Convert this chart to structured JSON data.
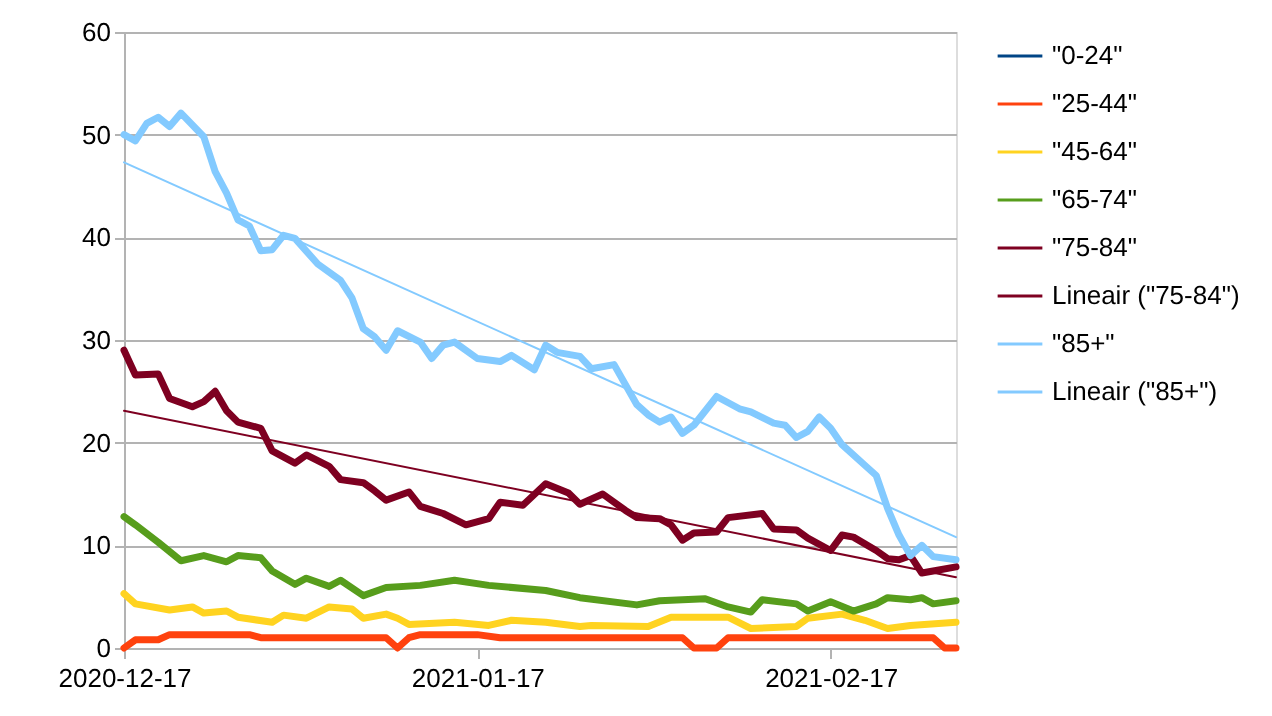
{
  "chart_data": {
    "type": "line",
    "xlim": [
      "2020-12-17",
      "2021-02-28"
    ],
    "xticks": [
      "2020-12-17",
      "2021-01-17",
      "2021-02-17"
    ],
    "ylim": [
      0,
      60
    ],
    "yticks": [
      0,
      10,
      20,
      30,
      40,
      50,
      60
    ],
    "grid": "y",
    "legend": "right",
    "series": [
      {
        "name": "\"0-24\"",
        "color": "#004586"
      },
      {
        "name": "\"25-44\"",
        "color": "#ff420e",
        "x": [
          "2020-12-17",
          "2020-12-18",
          "2020-12-20",
          "2020-12-21",
          "2020-12-26",
          "2020-12-28",
          "2020-12-29",
          "2021-01-09",
          "2021-01-10",
          "2021-01-11",
          "2021-01-12",
          "2021-01-17",
          "2021-01-19",
          "2021-02-04",
          "2021-02-05",
          "2021-02-07",
          "2021-02-08",
          "2021-02-26",
          "2021-02-27",
          "2021-02-28"
        ],
        "values": [
          0,
          0.8,
          0.8,
          1.3,
          1.3,
          1.3,
          1.0,
          1.0,
          0,
          1.0,
          1.3,
          1.3,
          1.0,
          1.0,
          0,
          0,
          1.0,
          1.0,
          0,
          0
        ]
      },
      {
        "name": "\"45-64\"",
        "color": "#ffd320",
        "x": [
          "2020-12-17",
          "2020-12-18",
          "2020-12-21",
          "2020-12-23",
          "2020-12-24",
          "2020-12-26",
          "2020-12-27",
          "2020-12-30",
          "2020-12-31",
          "2021-01-02",
          "2021-01-04",
          "2021-01-06",
          "2021-01-07",
          "2021-01-09",
          "2021-01-10",
          "2021-01-11",
          "2021-01-15",
          "2021-01-18",
          "2021-01-20",
          "2021-01-23",
          "2021-01-26",
          "2021-01-27",
          "2021-02-01",
          "2021-02-03",
          "2021-02-08",
          "2021-02-10",
          "2021-02-14",
          "2021-02-15",
          "2021-02-18",
          "2021-02-20",
          "2021-02-22",
          "2021-02-24",
          "2021-02-28"
        ],
        "values": [
          5.3,
          4.3,
          3.7,
          4.0,
          3.4,
          3.6,
          3.0,
          2.5,
          3.2,
          2.9,
          4.0,
          3.8,
          2.9,
          3.3,
          2.9,
          2.3,
          2.5,
          2.2,
          2.7,
          2.5,
          2.1,
          2.2,
          2.1,
          3.0,
          3.0,
          1.9,
          2.1,
          2.9,
          3.3,
          2.7,
          1.9,
          2.2,
          2.5
        ]
      },
      {
        "name": "\"65-74\"",
        "color": "#579d1c",
        "x": [
          "2020-12-17",
          "2020-12-18",
          "2020-12-20",
          "2020-12-22",
          "2020-12-24",
          "2020-12-26",
          "2020-12-27",
          "2020-12-29",
          "2020-12-30",
          "2021-01-01",
          "2021-01-02",
          "2021-01-04",
          "2021-01-05",
          "2021-01-07",
          "2021-01-09",
          "2021-01-12",
          "2021-01-15",
          "2021-01-18",
          "2021-01-23",
          "2021-01-26",
          "2021-01-31",
          "2021-02-02",
          "2021-02-06",
          "2021-02-08",
          "2021-02-10",
          "2021-02-11",
          "2021-02-14",
          "2021-02-15",
          "2021-02-17",
          "2021-02-19",
          "2021-02-21",
          "2021-02-22",
          "2021-02-24",
          "2021-02-25",
          "2021-02-26",
          "2021-02-28"
        ],
        "values": [
          12.8,
          12.0,
          10.3,
          8.5,
          9.0,
          8.4,
          9.0,
          8.8,
          7.5,
          6.2,
          6.8,
          6.0,
          6.6,
          5.1,
          5.9,
          6.1,
          6.6,
          6.1,
          5.6,
          4.9,
          4.2,
          4.6,
          4.8,
          4.0,
          3.5,
          4.7,
          4.3,
          3.6,
          4.5,
          3.6,
          4.3,
          4.9,
          4.7,
          4.9,
          4.3,
          4.6
        ]
      },
      {
        "name": "\"75-84\"",
        "color": "#7e0021",
        "x": [
          "2020-12-17",
          "2020-12-18",
          "2020-12-20",
          "2020-12-21",
          "2020-12-23",
          "2020-12-24",
          "2020-12-25",
          "2020-12-26",
          "2020-12-27",
          "2020-12-29",
          "2020-12-30",
          "2021-01-01",
          "2021-01-02",
          "2021-01-04",
          "2021-01-05",
          "2021-01-07",
          "2021-01-08",
          "2021-01-09",
          "2021-01-11",
          "2021-01-12",
          "2021-01-14",
          "2021-01-16",
          "2021-01-18",
          "2021-01-19",
          "2021-01-21",
          "2021-01-23",
          "2021-01-25",
          "2021-01-26",
          "2021-01-28",
          "2021-01-30",
          "2021-01-31",
          "2021-02-02",
          "2021-02-03",
          "2021-02-04",
          "2021-02-05",
          "2021-02-07",
          "2021-02-08",
          "2021-02-11",
          "2021-02-12",
          "2021-02-14",
          "2021-02-15",
          "2021-02-17",
          "2021-02-18",
          "2021-02-19",
          "2021-02-21",
          "2021-02-22",
          "2021-02-23",
          "2021-02-24",
          "2021-02-25",
          "2021-02-26",
          "2021-02-28"
        ],
        "values": [
          29.0,
          26.6,
          26.7,
          24.3,
          23.5,
          24.0,
          25.0,
          23.1,
          22.0,
          21.4,
          19.2,
          18.0,
          18.8,
          17.7,
          16.4,
          16.1,
          15.3,
          14.4,
          15.2,
          13.8,
          13.1,
          12.0,
          12.6,
          14.2,
          13.9,
          16.0,
          15.1,
          14.0,
          15.0,
          13.4,
          12.7,
          12.6,
          12.0,
          10.5,
          11.2,
          11.3,
          12.7,
          13.1,
          11.6,
          11.5,
          10.7,
          9.5,
          11.0,
          10.8,
          9.5,
          8.7,
          8.6,
          9.0,
          7.3,
          7.5,
          7.9
        ]
      },
      {
        "name": "Lineair (\"75-84\")",
        "color": "#7e0021",
        "type": "line",
        "x": [
          "2020-12-17",
          "2021-02-28"
        ],
        "values": [
          23.1,
          6.9
        ]
      },
      {
        "name": "\"85+\"",
        "color": "#83caff",
        "x": [
          "2020-12-17",
          "2020-12-18",
          "2020-12-19",
          "2020-12-20",
          "2020-12-21",
          "2020-12-22",
          "2020-12-24",
          "2020-12-25",
          "2020-12-26",
          "2020-12-27",
          "2020-12-28",
          "2020-12-29",
          "2020-12-30",
          "2020-12-31",
          "2021-01-01",
          "2021-01-03",
          "2021-01-05",
          "2021-01-06",
          "2021-01-07",
          "2021-01-08",
          "2021-01-09",
          "2021-01-10",
          "2021-01-12",
          "2021-01-13",
          "2021-01-14",
          "2021-01-15",
          "2021-01-17",
          "2021-01-19",
          "2021-01-20",
          "2021-01-22",
          "2021-01-23",
          "2021-01-24",
          "2021-01-26",
          "2021-01-27",
          "2021-01-29",
          "2021-01-31",
          "2021-02-01",
          "2021-02-02",
          "2021-02-03",
          "2021-02-04",
          "2021-02-05",
          "2021-02-07",
          "2021-02-09",
          "2021-02-10",
          "2021-02-12",
          "2021-02-13",
          "2021-02-14",
          "2021-02-15",
          "2021-02-16",
          "2021-02-17",
          "2021-02-18",
          "2021-02-20",
          "2021-02-21",
          "2021-02-22",
          "2021-02-23",
          "2021-02-24",
          "2021-02-25",
          "2021-02-26",
          "2021-02-28"
        ],
        "values": [
          50.0,
          49.4,
          51.1,
          51.7,
          50.8,
          52.1,
          49.8,
          46.4,
          44.3,
          41.7,
          41.1,
          38.7,
          38.8,
          40.2,
          39.9,
          37.4,
          35.8,
          34.1,
          31.1,
          30.3,
          29.0,
          30.9,
          29.8,
          28.2,
          29.5,
          29.8,
          28.2,
          27.9,
          28.5,
          27.1,
          29.5,
          28.8,
          28.4,
          27.2,
          27.6,
          23.7,
          22.7,
          22.0,
          22.5,
          20.9,
          21.7,
          24.5,
          23.3,
          23.0,
          21.9,
          21.7,
          20.5,
          21.1,
          22.5,
          21.4,
          19.8,
          17.8,
          16.8,
          13.6,
          11.0,
          9.0,
          10.0,
          8.9,
          8.6
        ]
      },
      {
        "name": "Lineair (\"85+\")",
        "color": "#83caff",
        "type": "line",
        "x": [
          "2020-12-17",
          "2021-02-28"
        ],
        "values": [
          47.3,
          10.8
        ]
      }
    ]
  }
}
